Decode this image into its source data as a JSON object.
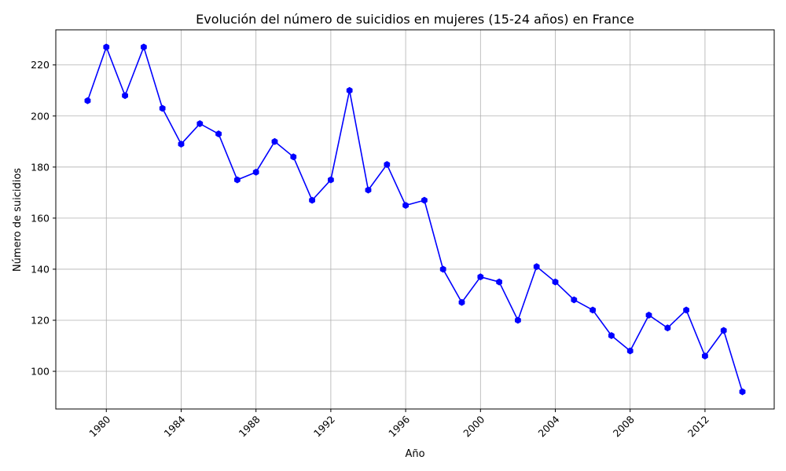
{
  "chart_data": {
    "type": "line",
    "title": "Evolución del número de suicidios en mujeres (15-24 años) en France",
    "xlabel": "Año",
    "ylabel": "Número de suicidios",
    "x": [
      1979,
      1980,
      1981,
      1982,
      1983,
      1984,
      1985,
      1986,
      1987,
      1988,
      1989,
      1990,
      1991,
      1992,
      1993,
      1994,
      1995,
      1996,
      1997,
      1998,
      1999,
      2000,
      2001,
      2002,
      2003,
      2004,
      2005,
      2006,
      2007,
      2008,
      2009,
      2010,
      2011,
      2012,
      2013,
      2014
    ],
    "series": [
      {
        "values": [
          206,
          227,
          208,
          227,
          203,
          189,
          197,
          193,
          175,
          178,
          190,
          184,
          167,
          175,
          210,
          171,
          181,
          165,
          167,
          140,
          127,
          137,
          135,
          120,
          141,
          135,
          128,
          124,
          114,
          108,
          122,
          117,
          124,
          106,
          116,
          92
        ],
        "color": "#0000ff",
        "marker": "hexagon"
      }
    ],
    "xticks": [
      1980,
      1984,
      1988,
      1992,
      1996,
      2000,
      2004,
      2008,
      2012
    ],
    "yticks": [
      100,
      120,
      140,
      160,
      180,
      200,
      220
    ],
    "xlim": [
      1977.3,
      2015.7
    ],
    "ylim": [
      85.25,
      233.75
    ],
    "grid": true,
    "legend": "none"
  }
}
